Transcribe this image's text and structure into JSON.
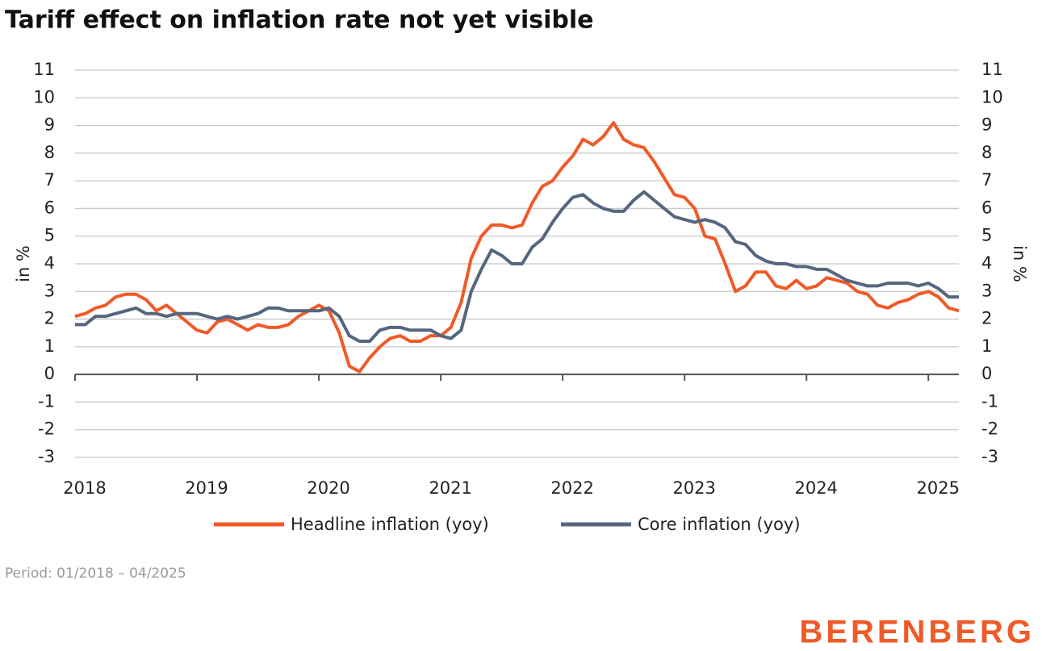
{
  "chart_data": {
    "type": "line",
    "title": "Tariff effect on inflation rate not yet visible",
    "ylabel": "in %",
    "y2label": "in %",
    "note": "Period: 01/2018 – 04/2025",
    "brand": "BERENBERG",
    "x": [
      2018,
      2018.083,
      2018.167,
      2018.25,
      2018.333,
      2018.417,
      2018.5,
      2018.583,
      2018.667,
      2018.75,
      2018.833,
      2018.917,
      2019,
      2019.083,
      2019.167,
      2019.25,
      2019.333,
      2019.417,
      2019.5,
      2019.583,
      2019.667,
      2019.75,
      2019.833,
      2019.917,
      2020,
      2020.083,
      2020.167,
      2020.25,
      2020.333,
      2020.417,
      2020.5,
      2020.583,
      2020.667,
      2020.75,
      2020.833,
      2020.917,
      2021,
      2021.083,
      2021.167,
      2021.25,
      2021.333,
      2021.417,
      2021.5,
      2021.583,
      2021.667,
      2021.75,
      2021.833,
      2021.917,
      2022,
      2022.083,
      2022.167,
      2022.25,
      2022.333,
      2022.417,
      2022.5,
      2022.583,
      2022.667,
      2022.75,
      2022.833,
      2022.917,
      2023,
      2023.083,
      2023.167,
      2023.25,
      2023.333,
      2023.417,
      2023.5,
      2023.583,
      2023.667,
      2023.75,
      2023.833,
      2023.917,
      2024,
      2024.083,
      2024.167,
      2024.25,
      2024.333,
      2024.417,
      2024.5,
      2024.583,
      2024.667,
      2024.75,
      2024.833,
      2024.917,
      2025,
      2025.083,
      2025.167,
      2025.25
    ],
    "series": [
      {
        "name": "Headline inflation (yoy)",
        "color": "#f05a28",
        "values": [
          2.1,
          2.2,
          2.4,
          2.5,
          2.8,
          2.9,
          2.9,
          2.7,
          2.3,
          2.5,
          2.2,
          1.9,
          1.6,
          1.5,
          1.9,
          2.0,
          1.8,
          1.6,
          1.8,
          1.7,
          1.7,
          1.8,
          2.1,
          2.3,
          2.5,
          2.3,
          1.5,
          0.3,
          0.1,
          0.6,
          1.0,
          1.3,
          1.4,
          1.2,
          1.2,
          1.4,
          1.4,
          1.7,
          2.6,
          4.2,
          5.0,
          5.4,
          5.4,
          5.3,
          5.4,
          6.2,
          6.8,
          7.0,
          7.5,
          7.9,
          8.5,
          8.3,
          8.6,
          9.1,
          8.5,
          8.3,
          8.2,
          7.7,
          7.1,
          6.5,
          6.4,
          6.0,
          5.0,
          4.9,
          4.0,
          3.0,
          3.2,
          3.7,
          3.7,
          3.2,
          3.1,
          3.4,
          3.1,
          3.2,
          3.5,
          3.4,
          3.3,
          3.0,
          2.9,
          2.5,
          2.4,
          2.6,
          2.7,
          2.9,
          3.0,
          2.8,
          2.4,
          2.3
        ]
      },
      {
        "name": "Core inflation (yoy)",
        "color": "#56667f",
        "values": [
          1.8,
          1.8,
          2.1,
          2.1,
          2.2,
          2.3,
          2.4,
          2.2,
          2.2,
          2.1,
          2.2,
          2.2,
          2.2,
          2.1,
          2.0,
          2.1,
          2.0,
          2.1,
          2.2,
          2.4,
          2.4,
          2.3,
          2.3,
          2.3,
          2.3,
          2.4,
          2.1,
          1.4,
          1.2,
          1.2,
          1.6,
          1.7,
          1.7,
          1.6,
          1.6,
          1.6,
          1.4,
          1.3,
          1.6,
          3.0,
          3.8,
          4.5,
          4.3,
          4.0,
          4.0,
          4.6,
          4.9,
          5.5,
          6.0,
          6.4,
          6.5,
          6.2,
          6.0,
          5.9,
          5.9,
          6.3,
          6.6,
          6.3,
          6.0,
          5.7,
          5.6,
          5.5,
          5.6,
          5.5,
          5.3,
          4.8,
          4.7,
          4.3,
          4.1,
          4.0,
          4.0,
          3.9,
          3.9,
          3.8,
          3.8,
          3.6,
          3.4,
          3.3,
          3.2,
          3.2,
          3.3,
          3.3,
          3.3,
          3.2,
          3.3,
          3.1,
          2.8,
          2.8
        ]
      }
    ],
    "xlim": [
      2018,
      2025.25
    ],
    "xticks": [
      2018,
      2019,
      2020,
      2021,
      2022,
      2023,
      2024,
      2025
    ],
    "ylim": [
      -3,
      11
    ],
    "yticks": [
      -3,
      -2,
      -1,
      0,
      1,
      2,
      3,
      4,
      5,
      6,
      7,
      8,
      9,
      10,
      11
    ],
    "y2lim": [
      -3,
      11
    ],
    "y2ticks": [
      -3,
      -2,
      -1,
      0,
      1,
      2,
      3,
      4,
      5,
      6,
      7,
      8,
      9,
      10,
      11
    ],
    "grid": true,
    "legend": "bottom"
  }
}
